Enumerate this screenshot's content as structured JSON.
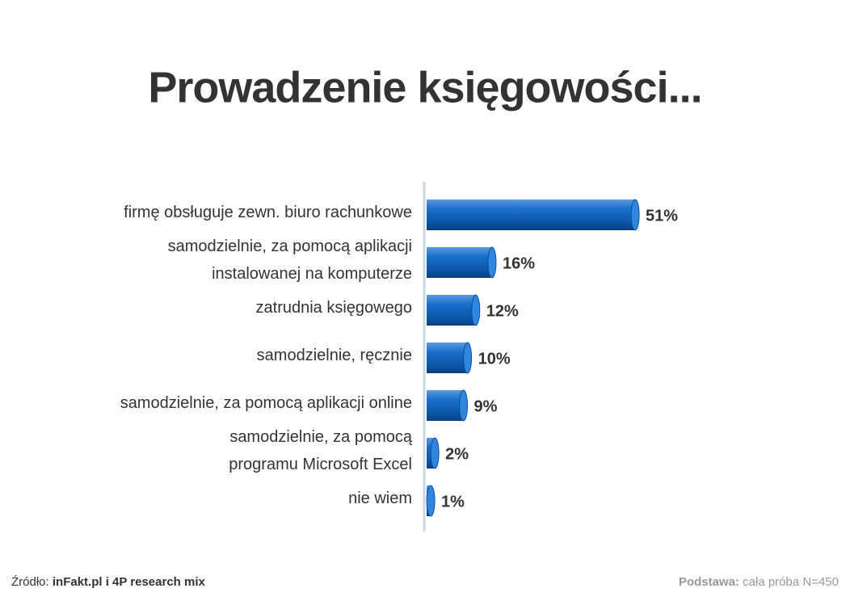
{
  "chart_data": {
    "type": "bar",
    "orientation": "horizontal",
    "title": "Prowadzenie księgowości...",
    "categories": [
      [
        "firmę obsługuje zewn. biuro rachunkowe"
      ],
      [
        "samodzielnie, za pomocą aplikacji",
        "instalowanej na komputerze"
      ],
      [
        "zatrudnia księgowego"
      ],
      [
        "samodzielnie, ręcznie"
      ],
      [
        "samodzielnie, za pomocą aplikacji online"
      ],
      [
        "samodzielnie, za pomocą",
        "programu Microsoft Excel"
      ],
      [
        "nie wiem"
      ]
    ],
    "values": [
      51,
      16,
      12,
      10,
      9,
      2,
      1
    ],
    "value_labels": [
      "51%",
      "16%",
      "12%",
      "10%",
      "9%",
      "2%",
      "1%"
    ],
    "color": "#1565c0"
  },
  "footer": {
    "source_label": "Źródło:",
    "source_value": "inFakt.pl i 4P research mix",
    "base_label": "Podstawa:",
    "base_value": "cała próba N=450"
  }
}
